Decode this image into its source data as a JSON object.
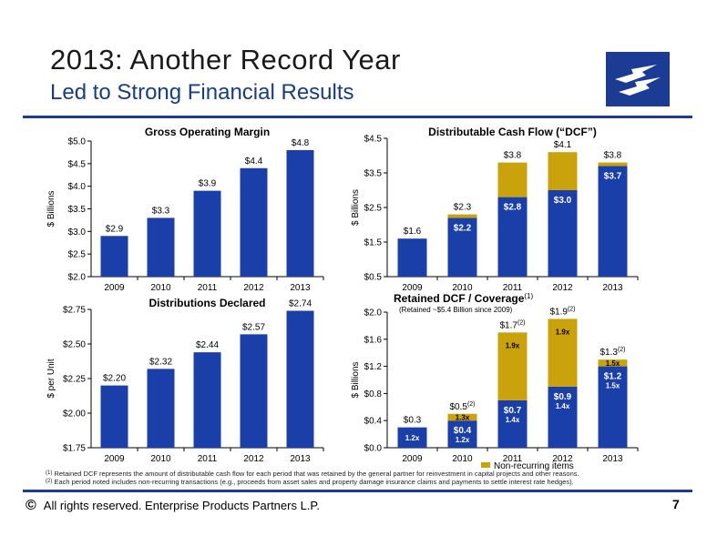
{
  "header": {
    "title": "2013:  Another Record Year",
    "subtitle": "Led to Strong Financial Results"
  },
  "footer": {
    "copyright_icon": "©",
    "text": "All rights reserved. Enterprise Products Partners L.P.",
    "page_number": "7"
  },
  "footnotes": {
    "note1_marker": "(1)",
    "note1": "Retained DCF represents the amount of distributable cash flow for each period that was retained by the general partner for reinvestment in capital projects and other reasons.",
    "note2_marker": "(2)",
    "note2": "Each period noted includes non-recurring transactions (e.g., proceeds from asset sales and property damage insurance claims and payments to settle interest rate hedges)."
  },
  "colors": {
    "blue": "#1b3fa8",
    "gold": "#c9a20c",
    "rule": "#1b3b94"
  },
  "chart_data": [
    {
      "type": "bar",
      "title": "Gross Operating Margin",
      "ylabel": "$ Billions",
      "categories": [
        "2009",
        "2010",
        "2011",
        "2012",
        "2013"
      ],
      "values": [
        2.9,
        3.3,
        3.9,
        4.4,
        4.8
      ],
      "value_labels": [
        "$2.9",
        "$3.3",
        "$3.9",
        "$4.4",
        "$4.8"
      ],
      "ylim": [
        2.0,
        5.0
      ],
      "yticks": [
        "$2.0",
        "$2.5",
        "$3.0",
        "$3.5",
        "$4.0",
        "$4.5",
        "$5.0"
      ]
    },
    {
      "type": "bar",
      "title": "Distributable Cash Flow (“DCF”)",
      "ylabel": "$ Billions",
      "categories": [
        "2009",
        "2010",
        "2011",
        "2012",
        "2013"
      ],
      "series": [
        {
          "values": [
            1.6,
            2.2,
            2.8,
            3.0,
            3.7
          ],
          "labels": [
            "",
            "$2.2",
            "$2.8",
            "$3.0",
            "$3.7"
          ]
        },
        {
          "values": [
            0.0,
            0.1,
            1.0,
            1.1,
            0.1
          ]
        }
      ],
      "total_labels": [
        "$1.6",
        "$2.3",
        "$3.8",
        "$4.1",
        "$3.8"
      ],
      "ylim": [
        0.5,
        4.5
      ],
      "yticks": [
        "$0.5",
        "$1.5",
        "$2.5",
        "$3.5",
        "$4.5"
      ]
    },
    {
      "type": "bar",
      "title": "Distributions Declared",
      "ylabel": "$ per Unit",
      "categories": [
        "2009",
        "2010",
        "2011",
        "2012",
        "2013"
      ],
      "values": [
        2.2,
        2.32,
        2.44,
        2.57,
        2.74
      ],
      "value_labels": [
        "$2.20",
        "$2.32",
        "$2.44",
        "$2.57",
        "$2.74"
      ],
      "ylim": [
        1.75,
        2.75
      ],
      "yticks": [
        "$1.75",
        "$2.00",
        "$2.25",
        "$2.50",
        "$2.75"
      ]
    },
    {
      "type": "bar",
      "title": "Retained DCF / Coverage",
      "title_sup": "(1)",
      "subtitle": "(Retained ~$5.4 Billion since 2009)",
      "ylabel": "$ Billions",
      "categories": [
        "2009",
        "2010",
        "2011",
        "2012",
        "2013"
      ],
      "series": [
        {
          "values": [
            0.3,
            0.4,
            0.7,
            0.9,
            1.2
          ],
          "labels": [
            "",
            "$0.4",
            "$0.7",
            "$0.9",
            "$1.2"
          ],
          "coverage": [
            "1.2x",
            "1.2x",
            "1.4x",
            "1.4x",
            "1.5x"
          ]
        },
        {
          "name": "Non-recurring items",
          "values": [
            0.0,
            0.1,
            1.0,
            1.0,
            0.1
          ],
          "coverage": [
            "",
            "1.3x",
            "1.9x",
            "1.9x",
            "1.5x"
          ]
        }
      ],
      "total_labels": [
        "$0.3",
        "$0.5",
        "$1.7",
        "$1.9",
        "$1.3"
      ],
      "total_sups": [
        "",
        "(2)",
        "(2)",
        "(2)",
        "(2)"
      ],
      "ylim": [
        0.0,
        2.0
      ],
      "yticks": [
        "$0.0",
        "$0.4",
        "$0.8",
        "$1.2",
        "$1.6",
        "$2.0"
      ]
    }
  ]
}
